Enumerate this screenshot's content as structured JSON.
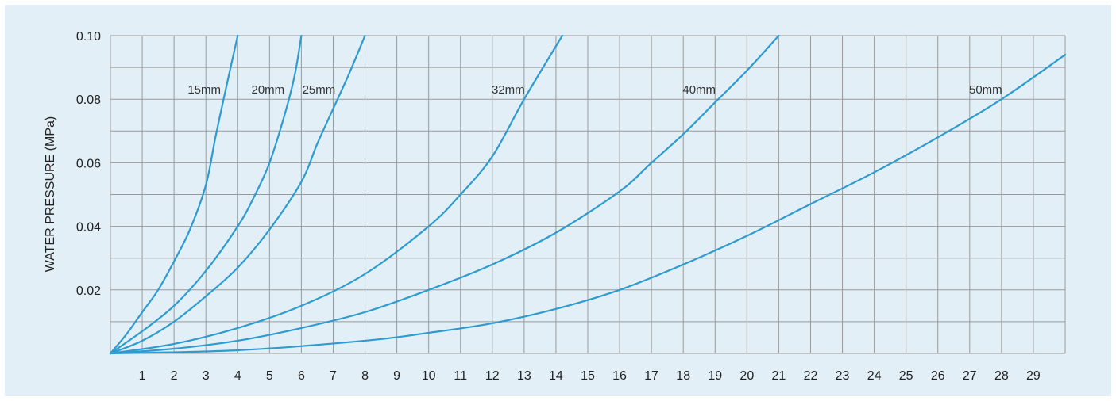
{
  "chart_data": {
    "type": "line",
    "title": "",
    "xlabel": "",
    "ylabel": "WATER PRESSURE (MPa)",
    "xlim": [
      0,
      30
    ],
    "ylim": [
      0,
      0.1
    ],
    "x_ticks": [
      "1",
      "2",
      "3",
      "4",
      "5",
      "6",
      "7",
      "8",
      "9",
      "10",
      "11",
      "12",
      "13",
      "14",
      "15",
      "16",
      "17",
      "18",
      "19",
      "20",
      "21",
      "22",
      "23",
      "24",
      "25",
      "26",
      "27",
      "28",
      "29"
    ],
    "y_ticks": [
      "0.02",
      "0.04",
      "0.06",
      "0.08",
      "0.10"
    ],
    "grid": true,
    "colors": {
      "line": "#2e9bd0",
      "grid": "#9a9a9a",
      "background": "#e2eff7"
    },
    "series": [
      {
        "name": "15mm",
        "label_at": [
          2.95,
          0.083
        ],
        "points": [
          [
            0,
            0
          ],
          [
            0.5,
            0.006
          ],
          [
            1,
            0.013
          ],
          [
            1.5,
            0.02
          ],
          [
            2,
            0.029
          ],
          [
            2.5,
            0.039
          ],
          [
            3,
            0.053
          ],
          [
            3.3,
            0.068
          ],
          [
            3.6,
            0.082
          ],
          [
            4,
            0.1
          ]
        ]
      },
      {
        "name": "20mm",
        "label_at": [
          4.95,
          0.083
        ],
        "points": [
          [
            0,
            0
          ],
          [
            1,
            0.007
          ],
          [
            2,
            0.015
          ],
          [
            3,
            0.026
          ],
          [
            4,
            0.04
          ],
          [
            4.5,
            0.049
          ],
          [
            5,
            0.06
          ],
          [
            5.5,
            0.076
          ],
          [
            5.8,
            0.088
          ],
          [
            6,
            0.1
          ]
        ]
      },
      {
        "name": "25mm",
        "label_at": [
          6.55,
          0.083
        ],
        "points": [
          [
            0,
            0
          ],
          [
            1,
            0.004
          ],
          [
            2,
            0.01
          ],
          [
            3,
            0.018
          ],
          [
            4,
            0.027
          ],
          [
            5,
            0.039
          ],
          [
            6,
            0.054
          ],
          [
            6.5,
            0.066
          ],
          [
            7,
            0.077
          ],
          [
            7.5,
            0.088
          ],
          [
            8,
            0.1
          ]
        ]
      },
      {
        "name": "32mm",
        "label_at": [
          12.5,
          0.083
        ],
        "points": [
          [
            0,
            0
          ],
          [
            2,
            0.003
          ],
          [
            4,
            0.008
          ],
          [
            6,
            0.015
          ],
          [
            8,
            0.025
          ],
          [
            10,
            0.04
          ],
          [
            11,
            0.05
          ],
          [
            12,
            0.062
          ],
          [
            13,
            0.08
          ],
          [
            14.2,
            0.1
          ]
        ]
      },
      {
        "name": "40mm",
        "label_at": [
          18.5,
          0.083
        ],
        "points": [
          [
            0,
            0
          ],
          [
            2,
            0.0015
          ],
          [
            4,
            0.004
          ],
          [
            6,
            0.008
          ],
          [
            8,
            0.013
          ],
          [
            10,
            0.02
          ],
          [
            12,
            0.028
          ],
          [
            14,
            0.038
          ],
          [
            16,
            0.051
          ],
          [
            17,
            0.06
          ],
          [
            18,
            0.069
          ],
          [
            19,
            0.079
          ],
          [
            20,
            0.089
          ],
          [
            21,
            0.1
          ]
        ]
      },
      {
        "name": "50mm",
        "label_at": [
          27.5,
          0.083
        ],
        "points": [
          [
            0,
            0
          ],
          [
            4,
            0.001
          ],
          [
            8,
            0.004
          ],
          [
            10,
            0.0065
          ],
          [
            12,
            0.0095
          ],
          [
            14,
            0.014
          ],
          [
            16,
            0.02
          ],
          [
            18,
            0.028
          ],
          [
            20,
            0.037
          ],
          [
            22,
            0.047
          ],
          [
            24,
            0.057
          ],
          [
            26,
            0.068
          ],
          [
            28,
            0.08
          ],
          [
            30,
            0.094
          ]
        ]
      }
    ]
  }
}
